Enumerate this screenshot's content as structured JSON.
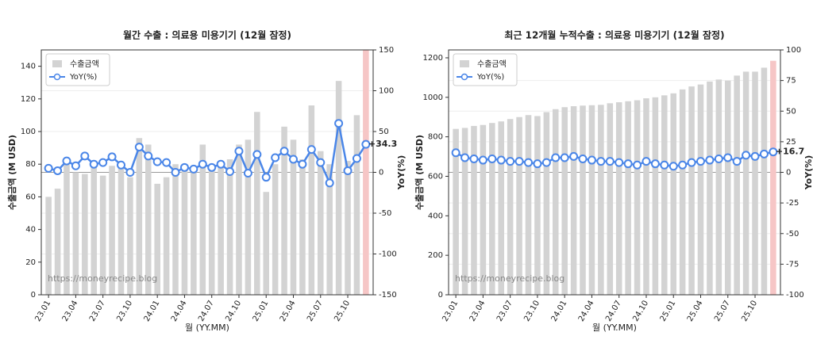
{
  "chart_data": [
    {
      "type": "bar-line",
      "title": "월간 수출 : 의료용 미용기기 (12월 잠정)",
      "xlabel": "월 (YY.MM)",
      "ylabel": "수출금액 (M USD)",
      "y2label": "YoY(%)",
      "watermark": "https://moneyrecipe.blog",
      "categories": [
        "23.01",
        null,
        null,
        "23.04",
        null,
        null,
        "23.07",
        null,
        null,
        "23.10",
        null,
        null,
        "24.01",
        null,
        null,
        "24.04",
        null,
        null,
        "24.07",
        null,
        null,
        "24.10",
        null,
        null,
        "25.01",
        null,
        null,
        "25.04",
        null,
        null,
        "25.07",
        null,
        null,
        "25.10",
        null,
        null
      ],
      "series": [
        {
          "name": "수출금액",
          "color": "#d3d3d3",
          "highlight_color": "#f6c6c6",
          "values": [
            60,
            65,
            80,
            75,
            74,
            80,
            73,
            79,
            80,
            72,
            96,
            92,
            68,
            72,
            80,
            80,
            78,
            92,
            77,
            80,
            83,
            92,
            95,
            112,
            63,
            80,
            103,
            95,
            83,
            116,
            88,
            80,
            131,
            82,
            110,
            150
          ]
        },
        {
          "name": "YoY(%)",
          "color": "#4a86e8",
          "axis": "y2",
          "values": [
            5,
            2,
            14,
            8,
            20,
            10,
            12,
            19,
            9,
            0,
            31,
            20,
            13,
            12,
            0,
            6,
            4,
            10,
            6,
            10,
            1,
            26,
            -1,
            22,
            -6,
            18,
            26,
            16,
            10,
            28,
            12,
            -13,
            60,
            2,
            17,
            34.3
          ],
          "value_labels": [
            null,
            null,
            null,
            null,
            null,
            null,
            null,
            null,
            null,
            null,
            null,
            null,
            null,
            null,
            null,
            null,
            null,
            null,
            null,
            null,
            null,
            null,
            null,
            null,
            null,
            null,
            null,
            null,
            null,
            null,
            null,
            null,
            null,
            null,
            null,
            "+34.3"
          ],
          "label_color": "#ff2a2a"
        }
      ],
      "ylim": [
        0,
        150
      ],
      "yticks": [
        0,
        20,
        40,
        60,
        80,
        100,
        120,
        140
      ],
      "y2lim": [
        -150,
        150
      ],
      "y2ticks": [
        -150,
        -100,
        -50,
        0,
        50,
        100,
        150
      ],
      "grid": true,
      "legend": "upper left"
    },
    {
      "type": "bar-line",
      "title": "최근 12개월 누적수출 : 의료용 미용기기 (12월 잠정)",
      "xlabel": "월 (YY.MM)",
      "ylabel": "수출금액 (M USD)",
      "y2label": "YoY(%)",
      "watermark": "https://moneyrecipe.blog",
      "categories": [
        "23.01",
        null,
        null,
        "23.04",
        null,
        null,
        "23.07",
        null,
        null,
        "23.10",
        null,
        null,
        "24.01",
        null,
        null,
        "24.04",
        null,
        null,
        "24.07",
        null,
        null,
        "24.10",
        null,
        null,
        "25.01",
        null,
        null,
        "25.04",
        null,
        null,
        "25.07",
        null,
        null,
        "25.10",
        null,
        null
      ],
      "series": [
        {
          "name": "수출금액",
          "color": "#d3d3d3",
          "highlight_color": "#f6c6c6",
          "values": [
            840,
            845,
            855,
            860,
            870,
            878,
            890,
            900,
            910,
            905,
            925,
            940,
            950,
            955,
            958,
            960,
            962,
            970,
            975,
            980,
            985,
            995,
            1000,
            1010,
            1020,
            1040,
            1055,
            1065,
            1080,
            1090,
            1085,
            1110,
            1130,
            1130,
            1150,
            1185
          ]
        },
        {
          "name": "YoY(%)",
          "color": "#4a86e8",
          "axis": "y2",
          "values": [
            16,
            12,
            11,
            10,
            11,
            10,
            9,
            9,
            8,
            7,
            8,
            12,
            12,
            13,
            11,
            10,
            9,
            9,
            8,
            7,
            6,
            9,
            7,
            6,
            5,
            6,
            8,
            9,
            10,
            11,
            12,
            9,
            14,
            13,
            15,
            16.7
          ],
          "value_labels": [
            null,
            null,
            null,
            null,
            null,
            null,
            null,
            null,
            null,
            null,
            null,
            null,
            null,
            null,
            null,
            null,
            null,
            null,
            null,
            null,
            null,
            null,
            null,
            null,
            null,
            null,
            null,
            null,
            null,
            null,
            null,
            null,
            null,
            null,
            null,
            "+16.7"
          ],
          "label_color": "#ff2a2a"
        }
      ],
      "ylim": [
        0,
        1240
      ],
      "yticks": [
        0,
        200,
        400,
        600,
        800,
        1000,
        1200
      ],
      "y2lim": [
        -100,
        100
      ],
      "y2ticks": [
        -100,
        -75,
        -50,
        -25,
        0,
        25,
        50,
        75,
        100
      ],
      "grid": true,
      "legend": "upper left"
    }
  ]
}
